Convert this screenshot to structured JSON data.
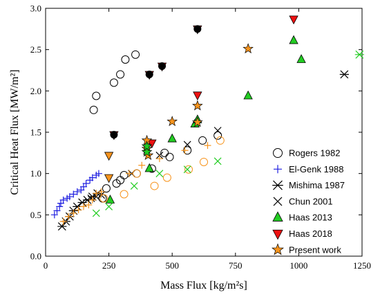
{
  "chart_data": {
    "type": "scatter",
    "title": "",
    "xlabel": "Mass Flux [kg/m²s]",
    "ylabel": "Critical Heat Flux [MW/m²]",
    "xlim": [
      0,
      1250
    ],
    "ylim": [
      0,
      3.0
    ],
    "x_ticks": [
      "0",
      "250",
      "500",
      "750",
      "1000",
      "1250"
    ],
    "y_ticks": [
      "0.0",
      "0.5",
      "1.0",
      "1.5",
      "2.0",
      "2.5",
      "3.0"
    ],
    "grid": false,
    "legend_position": "right",
    "series": [
      {
        "name": "Rogers 1982",
        "marker": "open-circle",
        "color": "#000000",
        "points": [
          [
            190,
            1.77
          ],
          [
            200,
            1.94
          ],
          [
            270,
            2.1
          ],
          [
            295,
            2.2
          ],
          [
            315,
            2.38
          ],
          [
            355,
            2.44
          ],
          [
            295,
            0.92
          ],
          [
            310,
            0.98
          ],
          [
            360,
            1.0
          ],
          [
            420,
            1.06
          ],
          [
            470,
            1.25
          ],
          [
            490,
            1.2
          ],
          [
            560,
            1.28
          ],
          [
            620,
            1.4
          ],
          [
            680,
            1.46
          ],
          [
            225,
            0.7
          ],
          [
            240,
            0.82
          ],
          [
            280,
            0.88
          ]
        ]
      },
      {
        "name": "El-Genk 1988",
        "marker": "plus",
        "color": "#1f1fe0",
        "points": [
          [
            35,
            0.5
          ],
          [
            45,
            0.55
          ],
          [
            55,
            0.6
          ],
          [
            60,
            0.64
          ],
          [
            70,
            0.68
          ],
          [
            85,
            0.7
          ],
          [
            95,
            0.72
          ],
          [
            110,
            0.75
          ],
          [
            125,
            0.78
          ],
          [
            140,
            0.8
          ],
          [
            150,
            0.84
          ],
          [
            160,
            0.88
          ],
          [
            175,
            0.92
          ],
          [
            185,
            0.95
          ],
          [
            200,
            0.98
          ],
          [
            210,
            1.0
          ]
        ]
      },
      {
        "name": "Mishima 1987",
        "marker": "asterisk",
        "color": "#000000",
        "points": [
          [
            65,
            0.36
          ],
          [
            80,
            0.42
          ],
          [
            95,
            0.48
          ],
          [
            110,
            0.55
          ],
          [
            125,
            0.6
          ],
          [
            145,
            0.65
          ],
          [
            165,
            0.68
          ],
          [
            185,
            0.72
          ],
          [
            205,
            0.76
          ],
          [
            1180,
            2.2
          ]
        ]
      },
      {
        "name": "Chun 2001",
        "marker": "x",
        "color": "#000000",
        "points": [
          [
            180,
            0.7
          ],
          [
            200,
            0.72
          ],
          [
            220,
            0.74
          ],
          [
            340,
            1.0
          ],
          [
            450,
            1.22
          ],
          [
            560,
            1.35
          ],
          [
            680,
            1.52
          ]
        ]
      },
      {
        "name": "Haas 2013",
        "marker": "triangle-up",
        "color": "#22cc22",
        "points": [
          [
            255,
            0.68
          ],
          [
            410,
            1.06
          ],
          [
            500,
            1.42
          ],
          [
            590,
            1.6
          ],
          [
            600,
            1.65
          ],
          [
            800,
            1.94
          ],
          [
            980,
            2.61
          ],
          [
            1010,
            2.38
          ]
        ]
      },
      {
        "name": "Haas 2018",
        "marker": "triangle-down",
        "color": "#ee1111",
        "points": [
          [
            270,
            1.47
          ],
          [
            410,
            2.2
          ],
          [
            460,
            2.3
          ],
          [
            600,
            2.75
          ],
          [
            420,
            1.37
          ],
          [
            600,
            1.95
          ],
          [
            980,
            2.87
          ]
        ]
      },
      {
        "name": "Present work",
        "marker": "star",
        "color": "#f7941d",
        "points": [
          [
            400,
            1.4
          ],
          [
            400,
            1.3
          ],
          [
            405,
            1.22
          ],
          [
            500,
            1.63
          ],
          [
            600,
            1.82
          ],
          [
            600,
            1.62
          ],
          [
            800,
            2.51
          ]
        ]
      },
      {
        "name": "",
        "marker": "filled-circle",
        "color": "#000000",
        "points": [
          [
            270,
            1.47
          ],
          [
            410,
            2.2
          ],
          [
            460,
            2.3
          ],
          [
            600,
            2.75
          ]
        ]
      },
      {
        "name": "",
        "marker": "triangle-down",
        "color": "#f7941d",
        "points": [
          [
            250,
            1.22
          ],
          [
            250,
            0.95
          ]
        ]
      },
      {
        "name": "",
        "marker": "open-circle",
        "color": "#f7941d",
        "points": [
          [
            230,
            0.7
          ],
          [
            310,
            0.75
          ],
          [
            360,
            1.0
          ],
          [
            430,
            0.85
          ],
          [
            480,
            0.95
          ],
          [
            565,
            1.05
          ],
          [
            625,
            1.14
          ],
          [
            690,
            1.4
          ]
        ]
      },
      {
        "name": "",
        "marker": "plus",
        "color": "#f7941d",
        "points": [
          [
            70,
            0.42
          ],
          [
            90,
            0.48
          ],
          [
            110,
            0.52
          ],
          [
            130,
            0.56
          ],
          [
            150,
            0.6
          ],
          [
            170,
            0.62
          ],
          [
            185,
            0.68
          ],
          [
            200,
            0.76
          ],
          [
            220,
            0.78
          ],
          [
            330,
            1.0
          ],
          [
            380,
            1.1
          ],
          [
            450,
            1.18
          ],
          [
            550,
            1.28
          ],
          [
            640,
            1.34
          ]
        ]
      },
      {
        "name": "",
        "marker": "x",
        "color": "#22cc22",
        "points": [
          [
            200,
            0.52
          ],
          [
            250,
            0.6
          ],
          [
            350,
            0.85
          ],
          [
            450,
            1.0
          ],
          [
            560,
            1.05
          ],
          [
            680,
            1.15
          ]
        ]
      },
      {
        "name": "",
        "marker": "asterisk",
        "color": "#22cc22",
        "points": [
          [
            1240,
            2.44
          ]
        ]
      },
      {
        "name": "",
        "marker": "star",
        "color": "#22cc22",
        "points": [
          [
            400,
            1.26
          ],
          [
            400,
            1.33
          ]
        ]
      }
    ],
    "legend": [
      {
        "label": "Rogers 1982",
        "marker": "open-circle",
        "color": "#000000"
      },
      {
        "label": "El-Genk 1988",
        "marker": "plus",
        "color": "#1f1fe0"
      },
      {
        "label": "Mishima 1987",
        "marker": "asterisk",
        "color": "#000000"
      },
      {
        "label": "Chun 2001",
        "marker": "x",
        "color": "#000000"
      },
      {
        "label": "Haas 2013",
        "marker": "triangle-up",
        "color": "#22cc22"
      },
      {
        "label": "Haas 2018",
        "marker": "triangle-down",
        "color": "#ee1111"
      },
      {
        "label": "Present work",
        "marker": "star",
        "color": "#f7941d"
      }
    ]
  }
}
